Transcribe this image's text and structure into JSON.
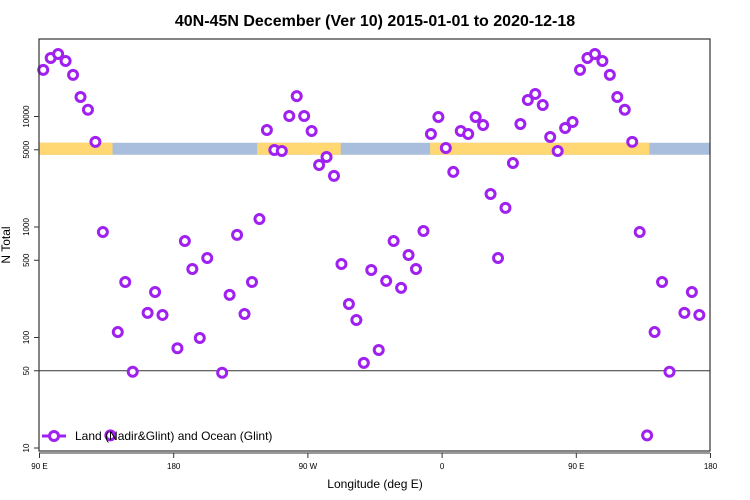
{
  "chart_data": {
    "type": "scatter",
    "title": "40N-45N December (Ver 10)   2015-01-01 to 2020-12-18",
    "xlabel": "Longitude (deg E)",
    "ylabel": "N Total",
    "x_axis": {
      "range_deg_east": [
        90,
        540
      ],
      "ticks": [
        {
          "value": 90,
          "label": "90 E"
        },
        {
          "value": 180,
          "label": "180"
        },
        {
          "value": 270,
          "label": "90 W"
        },
        {
          "value": 360,
          "label": "0"
        },
        {
          "value": 450,
          "label": "90 E"
        },
        {
          "value": 540,
          "label": "180"
        }
      ]
    },
    "y_axis": {
      "scale": "log",
      "range": [
        9,
        50000
      ],
      "ticks": [
        {
          "value": 10,
          "label": "10"
        },
        {
          "value": 50,
          "label": "50"
        },
        {
          "value": 100,
          "label": "100"
        },
        {
          "value": 500,
          "label": "500"
        },
        {
          "value": 1000,
          "label": "1000"
        },
        {
          "value": 5000,
          "label": "5000"
        },
        {
          "value": 10000,
          "label": "10000"
        }
      ]
    },
    "reference_line_y": 50,
    "grid": false,
    "legend": {
      "placement": "bottom-left",
      "label": "Land (Nadir&Glint) and Ocean (Glint)"
    },
    "colors": {
      "series": "#A020F0",
      "land": "#FFD873",
      "ocean": "#A8BEDC",
      "axis": "#333333"
    },
    "land_ocean_strip": {
      "y_value": 5000,
      "land_segments_lon": [
        [
          90,
          136
        ],
        [
          -124,
          -68
        ],
        [
          -8,
          139
        ]
      ]
    },
    "series": [
      {
        "name": "Land (Nadir&Glint) and Ocean (Glint)",
        "points": [
          [
            92.5,
            26400
          ],
          [
            97.5,
            33800
          ],
          [
            102.5,
            36800
          ],
          [
            107.5,
            31800
          ],
          [
            112.5,
            23800
          ],
          [
            117.5,
            15000
          ],
          [
            122.5,
            11500
          ],
          [
            127.5,
            5900
          ],
          [
            132.5,
            900
          ],
          [
            137.5,
            13
          ],
          [
            142.5,
            112
          ],
          [
            147.5,
            318
          ],
          [
            152.5,
            49
          ],
          [
            162.5,
            167
          ],
          [
            167.5,
            258
          ],
          [
            172.5,
            160
          ],
          [
            -177.5,
            80
          ],
          [
            -172.5,
            746
          ],
          [
            -167.5,
            417
          ],
          [
            -162.5,
            99
          ],
          [
            -157.5,
            524
          ],
          [
            -147.5,
            48
          ],
          [
            -142.5,
            243
          ],
          [
            -137.5,
            848
          ],
          [
            -132.5,
            163
          ],
          [
            -127.5,
            318
          ],
          [
            -122.5,
            1180
          ],
          [
            -117.5,
            7550
          ],
          [
            -112.5,
            4980
          ],
          [
            -107.5,
            4870
          ],
          [
            -102.5,
            10100
          ],
          [
            -97.5,
            15300
          ],
          [
            -92.5,
            10100
          ],
          [
            -87.5,
            7400
          ],
          [
            -82.5,
            3640
          ],
          [
            -77.5,
            4300
          ],
          [
            -72.5,
            2900
          ],
          [
            -67.5,
            462
          ],
          [
            -62.5,
            201
          ],
          [
            -57.5,
            144
          ],
          [
            -52.5,
            59
          ],
          [
            -47.5,
            408
          ],
          [
            -42.5,
            77
          ],
          [
            -37.5,
            325
          ],
          [
            -32.5,
            746
          ],
          [
            -27.5,
            281
          ],
          [
            -22.5,
            558
          ],
          [
            -17.5,
            417
          ],
          [
            -12.5,
            920
          ],
          [
            -7.5,
            6950
          ],
          [
            -2.5,
            9890
          ],
          [
            2.5,
            5190
          ],
          [
            7.5,
            3150
          ],
          [
            12.5,
            7400
          ],
          [
            17.5,
            6950
          ],
          [
            22.5,
            9890
          ],
          [
            27.5,
            8370
          ],
          [
            32.5,
            1990
          ],
          [
            37.5,
            524
          ],
          [
            42.5,
            1490
          ],
          [
            47.5,
            3790
          ],
          [
            52.5,
            8550
          ],
          [
            57.5,
            14100
          ],
          [
            62.5,
            16000
          ],
          [
            67.5,
            12700
          ],
          [
            72.5,
            6530
          ],
          [
            77.5,
            4870
          ],
          [
            82.5,
            7870
          ],
          [
            87.5,
            8910
          ]
        ]
      }
    ]
  }
}
